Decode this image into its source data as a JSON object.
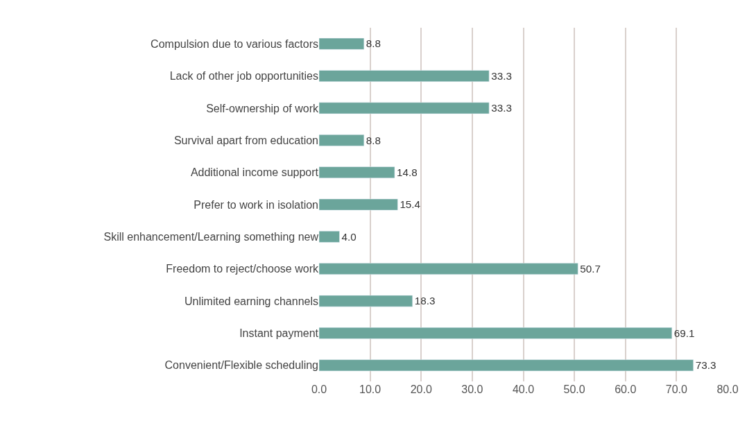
{
  "chart_data": {
    "type": "bar",
    "orientation": "horizontal",
    "categories": [
      "Compulsion due to various factors",
      "Lack of other job opportunities",
      "Self-ownership of work",
      "Survival apart from education",
      "Additional income support",
      "Prefer to work in isolation",
      "Skill enhancement/Learning something new",
      "Freedom to reject/choose work",
      "Unlimited earning channels",
      "Instant payment",
      "Convenient/Flexible scheduling"
    ],
    "values": [
      8.8,
      33.3,
      33.3,
      8.8,
      14.8,
      15.4,
      4.0,
      50.7,
      18.3,
      69.1,
      73.3
    ],
    "value_labels": [
      "8.8",
      "33.3",
      "33.3",
      "8.8",
      "14.8",
      "15.4",
      "4.0",
      "50.7",
      "18.3",
      "69.1",
      "73.3"
    ],
    "color": "#6ba59b",
    "xlim": [
      0,
      80
    ],
    "xticks": [
      {
        "value": 0,
        "label": "0.0"
      },
      {
        "value": 10,
        "label": "10.0"
      },
      {
        "value": 20,
        "label": "20.0"
      },
      {
        "value": 30,
        "label": "30.0"
      },
      {
        "value": 40,
        "label": "40.0"
      },
      {
        "value": 50,
        "label": "50.0"
      },
      {
        "value": 60,
        "label": "60.0"
      },
      {
        "value": 70,
        "label": "70.0"
      },
      {
        "value": 80,
        "label": "80.0"
      }
    ],
    "grid": "x",
    "legend": false
  }
}
